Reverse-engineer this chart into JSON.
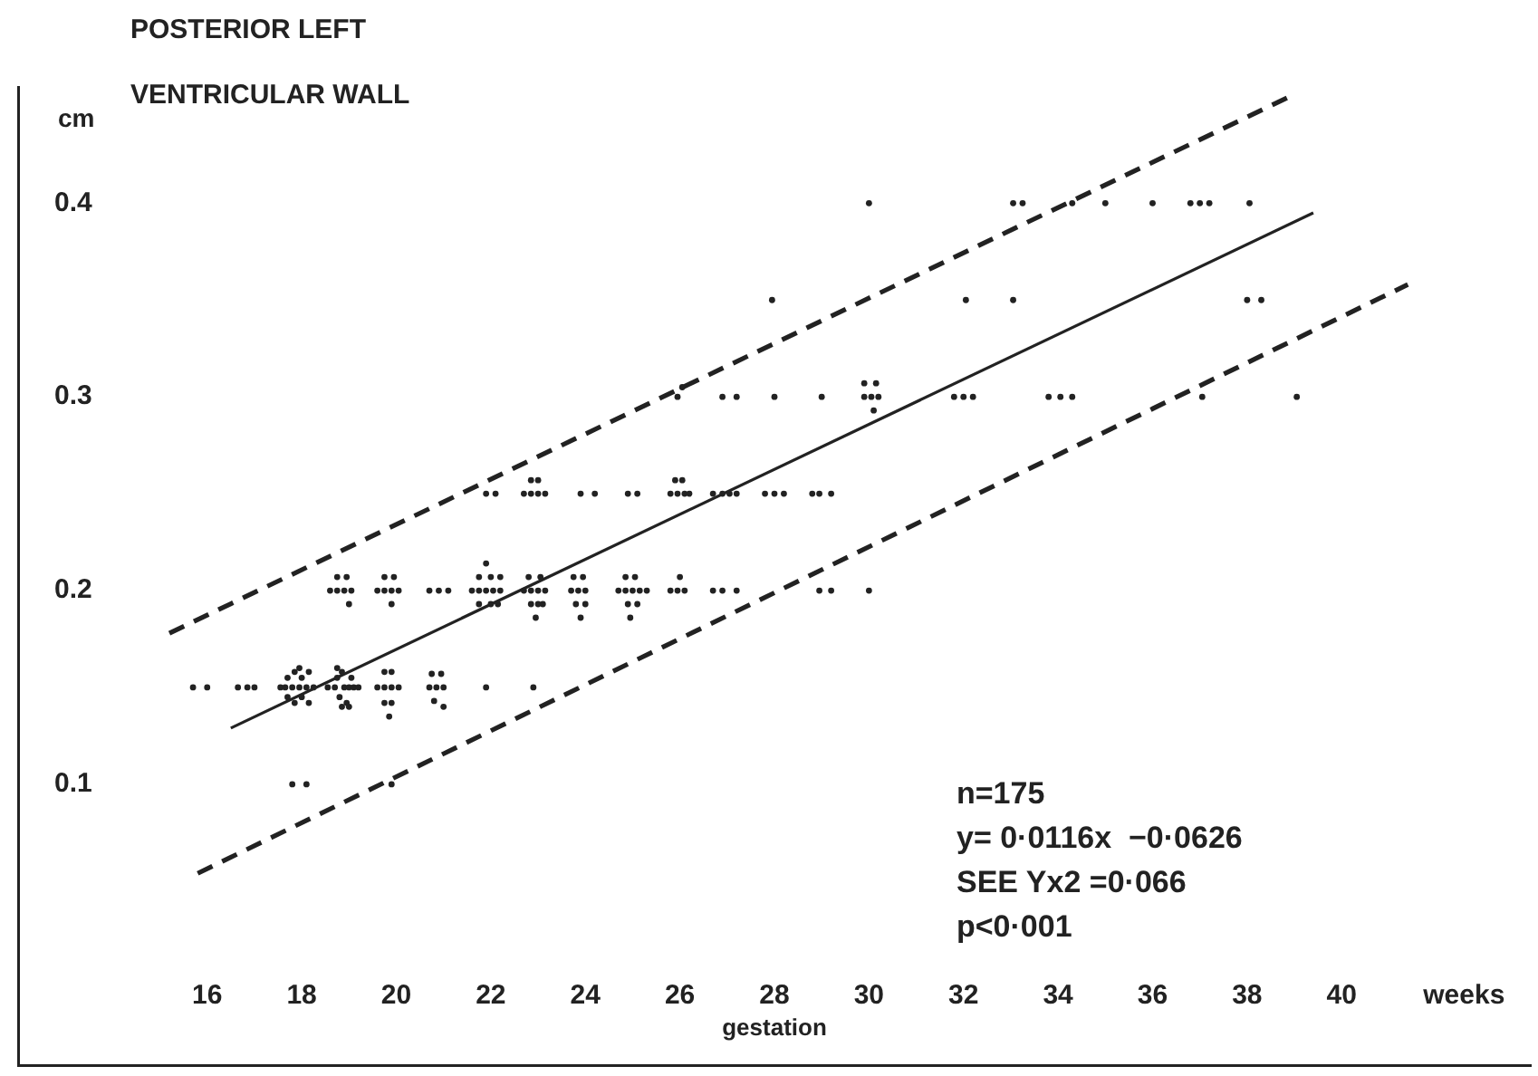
{
  "chart_data": {
    "type": "scatter",
    "title": "POSTERIOR LEFT",
    "subtitle": "VENTRICULAR WALL",
    "xlabel": "gestation",
    "ylabel": "cm",
    "annotations": [
      "weeks",
      "n=175",
      "y= 0·0116x  −0·0626",
      "SEE Yx2 =0·066",
      "p<0·001"
    ],
    "xlim": [
      12,
      44
    ],
    "ylim": [
      -0.045,
      0.46
    ],
    "xticks": [
      16,
      18,
      20,
      22,
      24,
      26,
      28,
      30,
      32,
      34,
      36,
      38,
      40
    ],
    "yticks": [
      0.1,
      0.2,
      0.3,
      0.4
    ],
    "legend": false,
    "series": [
      {
        "type": "scatter",
        "marker": "circle",
        "color": "#222222",
        "x": [
          17.8,
          18.1,
          19.9,
          15.7,
          16.0,
          16.65,
          16.85,
          17.0,
          17.55,
          17.7,
          17.7,
          17.8,
          17.85,
          17.85,
          17.95,
          18.0,
          18.0,
          18.1,
          18.15,
          18.15,
          17.65,
          18.25,
          17.95,
          18.55,
          18.7,
          18.75,
          18.8,
          18.85,
          18.9,
          18.95,
          19.0,
          19.05,
          19.1,
          19.2,
          18.85,
          19.0,
          18.75,
          19.6,
          19.75,
          19.9,
          20.05,
          19.75,
          19.9,
          19.75,
          19.9,
          19.85,
          20.7,
          20.85,
          21.0,
          20.75,
          20.95,
          20.8,
          21.0,
          21.9,
          22.9,
          18.6,
          18.75,
          18.75,
          18.95,
          18.9,
          19.05,
          19.0,
          19.6,
          19.75,
          19.9,
          20.05,
          19.75,
          19.95,
          19.9,
          20.7,
          20.9,
          21.1,
          21.6,
          21.75,
          21.9,
          22.05,
          22.2,
          21.75,
          22.0,
          22.2,
          21.9,
          21.75,
          22.0,
          22.15,
          22.7,
          22.85,
          23.0,
          23.15,
          22.8,
          23.05,
          22.85,
          23.0,
          22.95,
          23.1,
          23.7,
          23.85,
          24.0,
          23.75,
          23.95,
          23.8,
          24.0,
          23.9,
          24.7,
          24.85,
          25.0,
          25.15,
          25.3,
          24.85,
          25.05,
          24.9,
          25.1,
          24.95,
          25.8,
          25.95,
          26.1,
          26.0,
          26.7,
          26.9,
          27.2,
          28.95,
          29.2,
          30.0,
          21.9,
          22.1,
          22.7,
          22.85,
          23.0,
          23.15,
          22.85,
          23.0,
          23.9,
          24.2,
          24.9,
          25.1,
          25.8,
          25.95,
          26.1,
          26.2,
          25.9,
          26.05,
          26.7,
          26.9,
          27.05,
          27.2,
          27.8,
          28.0,
          28.2,
          28.8,
          28.95,
          29.2,
          25.95,
          26.05,
          26.9,
          27.2,
          28.0,
          29.0,
          29.9,
          30.05,
          30.2,
          29.9,
          30.15,
          30.1,
          31.8,
          32.0,
          32.2,
          33.8,
          34.05,
          34.3,
          37.05,
          39.05,
          27.95,
          32.05,
          33.05,
          38.0,
          38.3,
          30.0,
          33.05,
          33.25,
          34.3,
          35.0,
          36.0,
          36.8,
          37.0,
          37.2,
          38.05
        ],
        "values": [
          0.1,
          0.1,
          0.1,
          0.15,
          0.15,
          0.15,
          0.15,
          0.15,
          0.15,
          0.155,
          0.145,
          0.15,
          0.158,
          0.142,
          0.15,
          0.155,
          0.145,
          0.15,
          0.158,
          0.142,
          0.15,
          0.15,
          0.16,
          0.15,
          0.15,
          0.155,
          0.145,
          0.158,
          0.15,
          0.142,
          0.15,
          0.155,
          0.15,
          0.15,
          0.14,
          0.14,
          0.16,
          0.15,
          0.15,
          0.15,
          0.15,
          0.158,
          0.158,
          0.142,
          0.142,
          0.135,
          0.15,
          0.15,
          0.15,
          0.157,
          0.157,
          0.143,
          0.14,
          0.15,
          0.15,
          0.2,
          0.2,
          0.207,
          0.207,
          0.2,
          0.2,
          0.193,
          0.2,
          0.2,
          0.2,
          0.2,
          0.207,
          0.207,
          0.193,
          0.2,
          0.2,
          0.2,
          0.2,
          0.2,
          0.2,
          0.2,
          0.2,
          0.207,
          0.207,
          0.207,
          0.214,
          0.193,
          0.193,
          0.193,
          0.2,
          0.2,
          0.2,
          0.2,
          0.207,
          0.207,
          0.193,
          0.193,
          0.186,
          0.193,
          0.2,
          0.2,
          0.2,
          0.207,
          0.207,
          0.193,
          0.193,
          0.186,
          0.2,
          0.2,
          0.2,
          0.2,
          0.2,
          0.207,
          0.207,
          0.193,
          0.193,
          0.186,
          0.2,
          0.2,
          0.2,
          0.207,
          0.2,
          0.2,
          0.2,
          0.2,
          0.2,
          0.2,
          0.25,
          0.25,
          0.25,
          0.25,
          0.25,
          0.25,
          0.257,
          0.257,
          0.25,
          0.25,
          0.25,
          0.25,
          0.25,
          0.25,
          0.25,
          0.25,
          0.257,
          0.257,
          0.25,
          0.25,
          0.25,
          0.25,
          0.25,
          0.25,
          0.25,
          0.25,
          0.25,
          0.25,
          0.3,
          0.305,
          0.3,
          0.3,
          0.3,
          0.3,
          0.3,
          0.3,
          0.3,
          0.307,
          0.307,
          0.293,
          0.3,
          0.3,
          0.3,
          0.3,
          0.3,
          0.3,
          0.3,
          0.3,
          0.35,
          0.35,
          0.35,
          0.35,
          0.35,
          0.4,
          0.4,
          0.4,
          0.4,
          0.4,
          0.4,
          0.4,
          0.4,
          0.4,
          0.4
        ]
      },
      {
        "type": "line",
        "marker": "none",
        "color": "#222222",
        "line_style": "solid",
        "x": [
          16.5,
          39.4
        ],
        "values": [
          0.129,
          0.395
        ]
      },
      {
        "type": "line",
        "marker": "none",
        "color": "#222222",
        "line_style": "dashed",
        "x": [
          15.2,
          38.9
        ],
        "values": [
          0.178,
          0.455
        ]
      },
      {
        "type": "line",
        "marker": "none",
        "color": "#222222",
        "line_style": "dashed",
        "x": [
          15.8,
          41.4
        ],
        "values": [
          0.054,
          0.358
        ]
      }
    ]
  }
}
